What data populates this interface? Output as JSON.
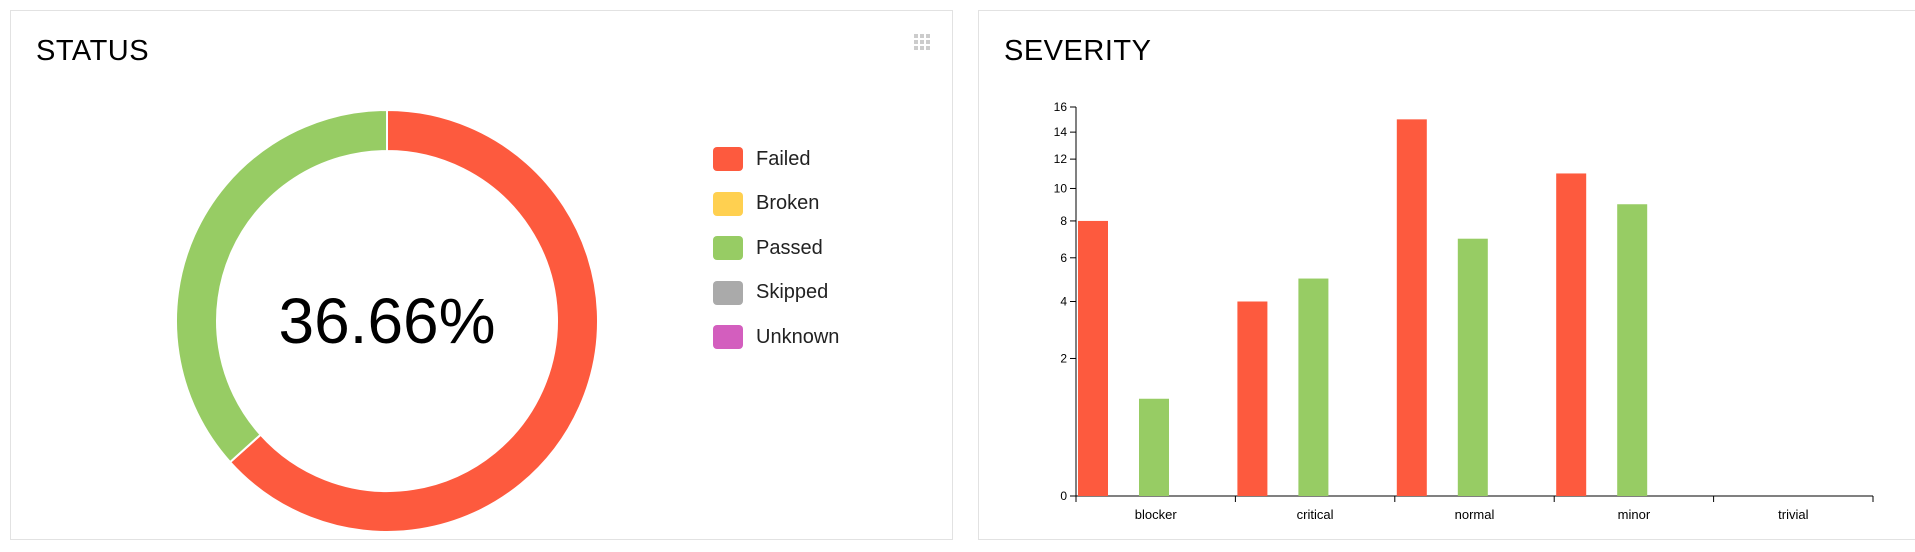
{
  "status": {
    "title": "STATUS",
    "center_label": "36.66%",
    "legend": [
      {
        "label": "Failed",
        "color": "#fd5a3e"
      },
      {
        "label": "Broken",
        "color": "#ffd050"
      },
      {
        "label": "Passed",
        "color": "#97cc64"
      },
      {
        "label": "Skipped",
        "color": "#aaaaaa"
      },
      {
        "label": "Unknown",
        "color": "#d35ebe"
      }
    ]
  },
  "severity": {
    "title": "SEVERITY"
  },
  "chart_data": [
    {
      "type": "pie",
      "title": "STATUS",
      "donut": true,
      "center_label": "36.66%",
      "labels": [
        "Failed",
        "Broken",
        "Passed",
        "Skipped",
        "Unknown"
      ],
      "values": [
        63.34,
        0,
        36.66,
        0,
        0
      ],
      "colors": [
        "#fd5a3e",
        "#ffd050",
        "#97cc64",
        "#aaaaaa",
        "#d35ebe"
      ],
      "legend_position": "right"
    },
    {
      "type": "bar",
      "title": "SEVERITY",
      "categories": [
        "blocker",
        "critical",
        "normal",
        "minor",
        "trivial"
      ],
      "series": [
        {
          "status": "failed",
          "color": "#fd5a3e",
          "values": [
            8,
            4,
            15,
            11,
            0
          ]
        },
        {
          "status": "passed",
          "color": "#97cc64",
          "values": [
            1,
            5,
            7,
            9,
            0
          ]
        }
      ],
      "y_scale": "sqrt",
      "yticks": [
        0,
        2,
        4,
        6,
        8,
        10,
        12,
        14,
        16
      ],
      "ylim": [
        0,
        16
      ],
      "grid": false,
      "legend": false
    }
  ]
}
